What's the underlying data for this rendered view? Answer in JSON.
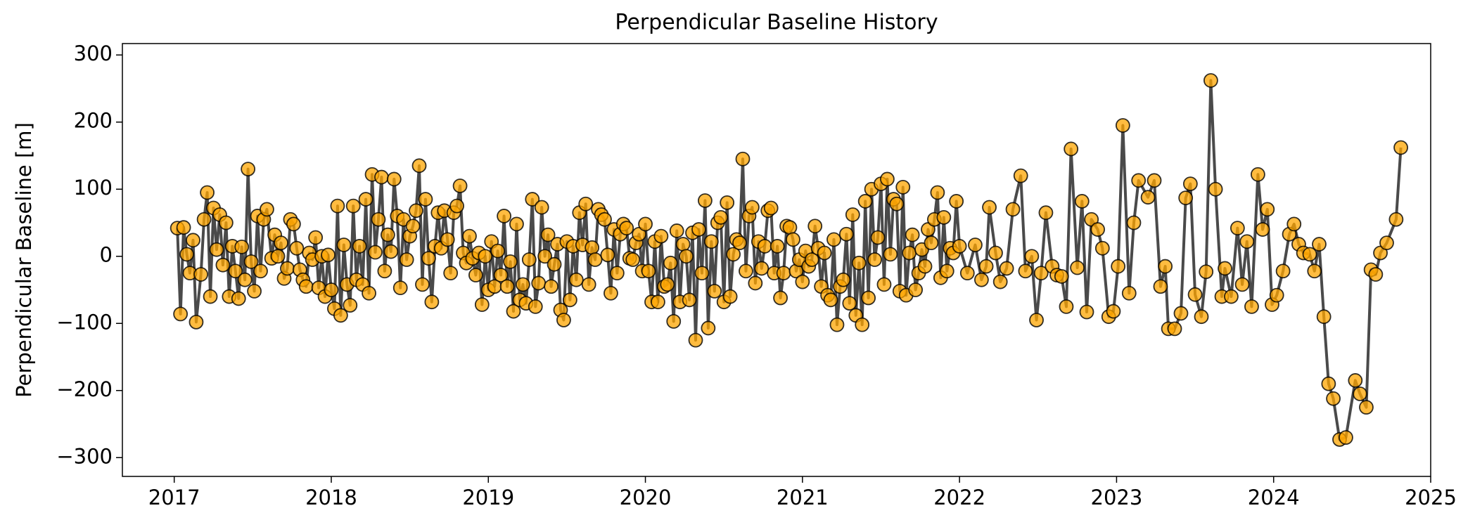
{
  "chart_data": {
    "type": "line",
    "title": "Perpendicular Baseline History",
    "y_label": "Perpendicular Baseline [m]",
    "x": [
      2017.02,
      2017.04,
      2017.06,
      2017.08,
      2017.1,
      2017.12,
      2017.14,
      2017.17,
      2017.19,
      2017.21,
      2017.23,
      2017.25,
      2017.27,
      2017.29,
      2017.31,
      2017.33,
      2017.35,
      2017.37,
      2017.39,
      2017.41,
      2017.43,
      2017.45,
      2017.47,
      2017.49,
      2017.51,
      2017.53,
      2017.55,
      2017.57,
      2017.59,
      2017.62,
      2017.64,
      2017.66,
      2017.68,
      2017.7,
      2017.72,
      2017.74,
      2017.76,
      2017.78,
      2017.8,
      2017.82,
      2017.84,
      2017.86,
      2017.88,
      2017.9,
      2017.92,
      2017.94,
      2017.96,
      2017.98,
      2018.0,
      2018.02,
      2018.04,
      2018.06,
      2018.08,
      2018.1,
      2018.12,
      2018.14,
      2018.16,
      2018.18,
      2018.2,
      2018.22,
      2018.24,
      2018.26,
      2018.28,
      2018.3,
      2018.32,
      2018.34,
      2018.36,
      2018.38,
      2018.4,
      2018.42,
      2018.44,
      2018.46,
      2018.48,
      2018.5,
      2018.52,
      2018.54,
      2018.56,
      2018.58,
      2018.6,
      2018.62,
      2018.64,
      2018.66,
      2018.68,
      2018.7,
      2018.72,
      2018.74,
      2018.76,
      2018.78,
      2018.8,
      2018.82,
      2018.84,
      2018.86,
      2018.88,
      2018.9,
      2018.92,
      2018.94,
      2018.96,
      2018.98,
      2019.0,
      2019.02,
      2019.04,
      2019.06,
      2019.08,
      2019.1,
      2019.12,
      2019.14,
      2019.16,
      2019.18,
      2019.2,
      2019.22,
      2019.24,
      2019.26,
      2019.28,
      2019.3,
      2019.32,
      2019.34,
      2019.36,
      2019.38,
      2019.4,
      2019.42,
      2019.44,
      2019.46,
      2019.48,
      2019.5,
      2019.52,
      2019.54,
      2019.56,
      2019.58,
      2019.6,
      2019.62,
      2019.64,
      2019.66,
      2019.68,
      2019.7,
      2019.72,
      2019.74,
      2019.76,
      2019.78,
      2019.8,
      2019.82,
      2019.84,
      2019.86,
      2019.88,
      2019.9,
      2019.92,
      2019.94,
      2019.96,
      2019.98,
      2020.0,
      2020.02,
      2020.04,
      2020.06,
      2020.08,
      2020.1,
      2020.12,
      2020.14,
      2020.16,
      2020.18,
      2020.2,
      2020.22,
      2020.24,
      2020.26,
      2020.28,
      2020.3,
      2020.32,
      2020.34,
      2020.36,
      2020.38,
      2020.4,
      2020.42,
      2020.44,
      2020.46,
      2020.48,
      2020.5,
      2020.52,
      2020.54,
      2020.56,
      2020.58,
      2020.6,
      2020.62,
      2020.64,
      2020.66,
      2020.68,
      2020.7,
      2020.72,
      2020.74,
      2020.76,
      2020.78,
      2020.8,
      2020.82,
      2020.84,
      2020.86,
      2020.88,
      2020.9,
      2020.92,
      2020.94,
      2020.96,
      2020.98,
      2021.0,
      2021.02,
      2021.04,
      2021.06,
      2021.08,
      2021.1,
      2021.12,
      2021.14,
      2021.16,
      2021.18,
      2021.2,
      2021.22,
      2021.24,
      2021.26,
      2021.28,
      2021.3,
      2021.32,
      2021.34,
      2021.36,
      2021.38,
      2021.4,
      2021.42,
      2021.44,
      2021.46,
      2021.48,
      2021.5,
      2021.52,
      2021.54,
      2021.56,
      2021.58,
      2021.6,
      2021.62,
      2021.64,
      2021.66,
      2021.68,
      2021.7,
      2021.72,
      2021.74,
      2021.76,
      2021.78,
      2021.8,
      2021.82,
      2021.84,
      2021.86,
      2021.88,
      2021.9,
      2021.92,
      2021.94,
      2021.96,
      2021.98,
      2022.0,
      2022.05,
      2022.1,
      2022.14,
      2022.17,
      2022.19,
      2022.23,
      2022.26,
      2022.3,
      2022.34,
      2022.39,
      2022.42,
      2022.46,
      2022.49,
      2022.52,
      2022.55,
      2022.59,
      2022.62,
      2022.65,
      2022.68,
      2022.71,
      2022.75,
      2022.78,
      2022.81,
      2022.84,
      2022.88,
      2022.91,
      2022.95,
      2022.98,
      2023.01,
      2023.04,
      2023.08,
      2023.11,
      2023.14,
      2023.2,
      2023.24,
      2023.28,
      2023.31,
      2023.33,
      2023.37,
      2023.41,
      2023.44,
      2023.47,
      2023.5,
      2023.54,
      2023.57,
      2023.6,
      2023.63,
      2023.67,
      2023.69,
      2023.73,
      2023.77,
      2023.8,
      2023.83,
      2023.86,
      2023.9,
      2023.93,
      2023.96,
      2023.99,
      2024.02,
      2024.06,
      2024.1,
      2024.13,
      2024.16,
      2024.19,
      2024.23,
      2024.26,
      2024.29,
      2024.32,
      2024.35,
      2024.38,
      2024.42,
      2024.46,
      2024.52,
      2024.55,
      2024.59,
      2024.62,
      2024.65,
      2024.68,
      2024.72,
      2024.78,
      2024.81
    ],
    "values": [
      42,
      -86,
      43,
      3,
      -25,
      24,
      -98,
      -27,
      55,
      95,
      -60,
      72,
      10,
      62,
      -13,
      50,
      -60,
      15,
      -22,
      -63,
      14,
      -35,
      130,
      -8,
      -52,
      60,
      -22,
      55,
      70,
      -3,
      32,
      0,
      20,
      -33,
      -18,
      55,
      48,
      12,
      -20,
      -35,
      -45,
      5,
      -5,
      28,
      -47,
      0,
      -60,
      2,
      -50,
      -78,
      75,
      -88,
      17,
      -42,
      -73,
      75,
      -35,
      15,
      -42,
      85,
      -55,
      122,
      6,
      55,
      118,
      -22,
      32,
      7,
      115,
      60,
      -47,
      55,
      -5,
      30,
      45,
      68,
      135,
      -42,
      85,
      -3,
      -68,
      15,
      65,
      12,
      68,
      25,
      -25,
      65,
      75,
      105,
      5,
      -10,
      30,
      -3,
      -28,
      5,
      -72,
      0,
      -50,
      22,
      -45,
      8,
      -28,
      60,
      -45,
      -8,
      -82,
      48,
      -65,
      -42,
      -70,
      -5,
      85,
      -75,
      -40,
      73,
      0,
      32,
      -45,
      -12,
      18,
      -80,
      -95,
      22,
      -65,
      15,
      -35,
      65,
      17,
      78,
      -42,
      13,
      -5,
      70,
      62,
      55,
      2,
      -55,
      40,
      -25,
      33,
      48,
      42,
      -3,
      -5,
      20,
      33,
      -22,
      48,
      -22,
      -68,
      22,
      -68,
      30,
      -45,
      -42,
      -10,
      -97,
      38,
      -68,
      18,
      0,
      -65,
      35,
      -125,
      40,
      -25,
      83,
      -107,
      22,
      -52,
      50,
      58,
      -68,
      80,
      -60,
      3,
      25,
      20,
      145,
      -22,
      60,
      73,
      -40,
      22,
      -18,
      15,
      68,
      72,
      -25,
      15,
      -62,
      -25,
      45,
      43,
      25,
      -22,
      -5,
      -38,
      8,
      -15,
      -5,
      45,
      12,
      -45,
      5,
      -58,
      -65,
      25,
      -102,
      -45,
      -35,
      33,
      -70,
      62,
      -88,
      -10,
      -102,
      82,
      -62,
      100,
      -5,
      28,
      108,
      -42,
      115,
      3,
      85,
      78,
      -52,
      103,
      -58,
      5,
      32,
      -50,
      -25,
      10,
      -15,
      40,
      20,
      55,
      95,
      -32,
      58,
      -22,
      12,
      5,
      82,
      15,
      -25,
      17,
      -35,
      -15,
      73,
      5,
      -38,
      -18,
      70,
      120,
      -22,
      0,
      -95,
      -25,
      65,
      -15,
      -28,
      -30,
      -75,
      160,
      -17,
      82,
      -83,
      55,
      40,
      12,
      -90,
      -82,
      -15,
      195,
      -55,
      50,
      113,
      88,
      113,
      -45,
      -15,
      -108,
      -108,
      -85,
      87,
      108,
      -57,
      -90,
      -23,
      262,
      100,
      -60,
      -18,
      -60,
      42,
      -42,
      22,
      -75,
      122,
      40,
      70,
      -72,
      -58,
      -22,
      33,
      48,
      18,
      5,
      3,
      -22,
      18,
      -90,
      -190,
      -212,
      -273,
      -270,
      -185,
      -205,
      -225,
      -20,
      -27,
      5,
      20,
      55,
      162
    ],
    "color": "#ffa500",
    "edge_color": "#000000",
    "line_color": "#404040",
    "xlim": [
      2016.67,
      2025
    ],
    "xticks": [
      2017,
      2018,
      2019,
      2020,
      2021,
      2022,
      2023,
      2024,
      2025
    ],
    "ylim": [
      -328,
      317
    ],
    "yticks": [
      {
        "value": -300,
        "label": "−300"
      },
      {
        "value": -200,
        "label": "−200"
      },
      {
        "value": -100,
        "label": "−100"
      },
      0,
      100,
      200,
      300
    ],
    "grid": false
  }
}
